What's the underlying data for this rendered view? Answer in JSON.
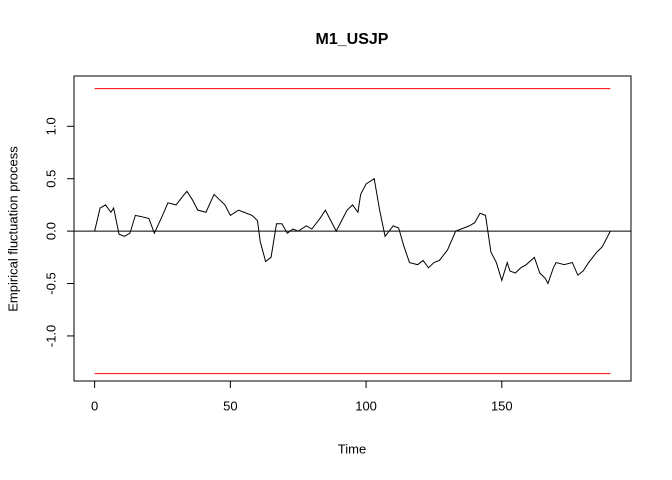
{
  "chart_data": {
    "type": "line",
    "title": "M1_USJP",
    "xlabel": "Time",
    "ylabel": "Empirical fluctuation process",
    "xlim": [
      -7.6,
      197.6
    ],
    "ylim": [
      -1.43,
      1.48
    ],
    "xticks": [
      0,
      50,
      100,
      150
    ],
    "yticks": [
      {
        "value": -1,
        "label": "-1.0"
      },
      -0.5,
      {
        "value": 0,
        "label": "0.0"
      },
      0.5,
      {
        "value": 1,
        "label": "1.0"
      }
    ],
    "reference_line": 0,
    "reference_color": "#000000",
    "series": [
      {
        "color": "#000000",
        "x": [
          0,
          2,
          4,
          6,
          7,
          9,
          11,
          13,
          15,
          17,
          20,
          22,
          25,
          27,
          30,
          33,
          34,
          36,
          38,
          41,
          44,
          46,
          48,
          50,
          53,
          55,
          58,
          60,
          61,
          63,
          65,
          67,
          69,
          71,
          73,
          75,
          78,
          80,
          83,
          85,
          87,
          89,
          91,
          93,
          95,
          97,
          98,
          100,
          103,
          104,
          105,
          107,
          110,
          112,
          114,
          116,
          119,
          121,
          123,
          125,
          127,
          130,
          133,
          136,
          138,
          140,
          142,
          144,
          146,
          148,
          150,
          152,
          153,
          155,
          157,
          159,
          162,
          164,
          166,
          167,
          169,
          170,
          173,
          176,
          178,
          180,
          182,
          185,
          187,
          190
        ],
        "values": [
          0,
          0.22,
          0.25,
          0.18,
          0.22,
          -0.03,
          -0.05,
          -0.02,
          0.15,
          0.14,
          0.12,
          -0.02,
          0.15,
          0.27,
          0.25,
          0.35,
          0.38,
          0.3,
          0.2,
          0.18,
          0.35,
          0.3,
          0.25,
          0.15,
          0.2,
          0.18,
          0.15,
          0.1,
          -0.1,
          -0.29,
          -0.25,
          0.07,
          0.07,
          -0.02,
          0.02,
          0.0,
          0.05,
          0.02,
          0.12,
          0.2,
          0.1,
          0.0,
          0.1,
          0.2,
          0.25,
          0.18,
          0.35,
          0.45,
          0.5,
          0.35,
          0.2,
          -0.05,
          0.05,
          0.03,
          -0.15,
          -0.3,
          -0.32,
          -0.28,
          -0.35,
          -0.3,
          -0.28,
          -0.18,
          0.0,
          0.03,
          0.05,
          0.08,
          0.17,
          0.15,
          -0.2,
          -0.3,
          -0.47,
          -0.3,
          -0.38,
          -0.4,
          -0.35,
          -0.32,
          -0.25,
          -0.4,
          -0.45,
          -0.5,
          -0.35,
          -0.3,
          -0.32,
          -0.3,
          -0.42,
          -0.38,
          -0.3,
          -0.2,
          -0.15,
          0.0
        ]
      },
      {
        "color": "#ff0000",
        "x": [
          0,
          190
        ],
        "values": [
          1.36,
          1.36
        ]
      },
      {
        "color": "#ff0000",
        "x": [
          0,
          190
        ],
        "values": [
          -1.36,
          -1.36
        ]
      }
    ]
  }
}
